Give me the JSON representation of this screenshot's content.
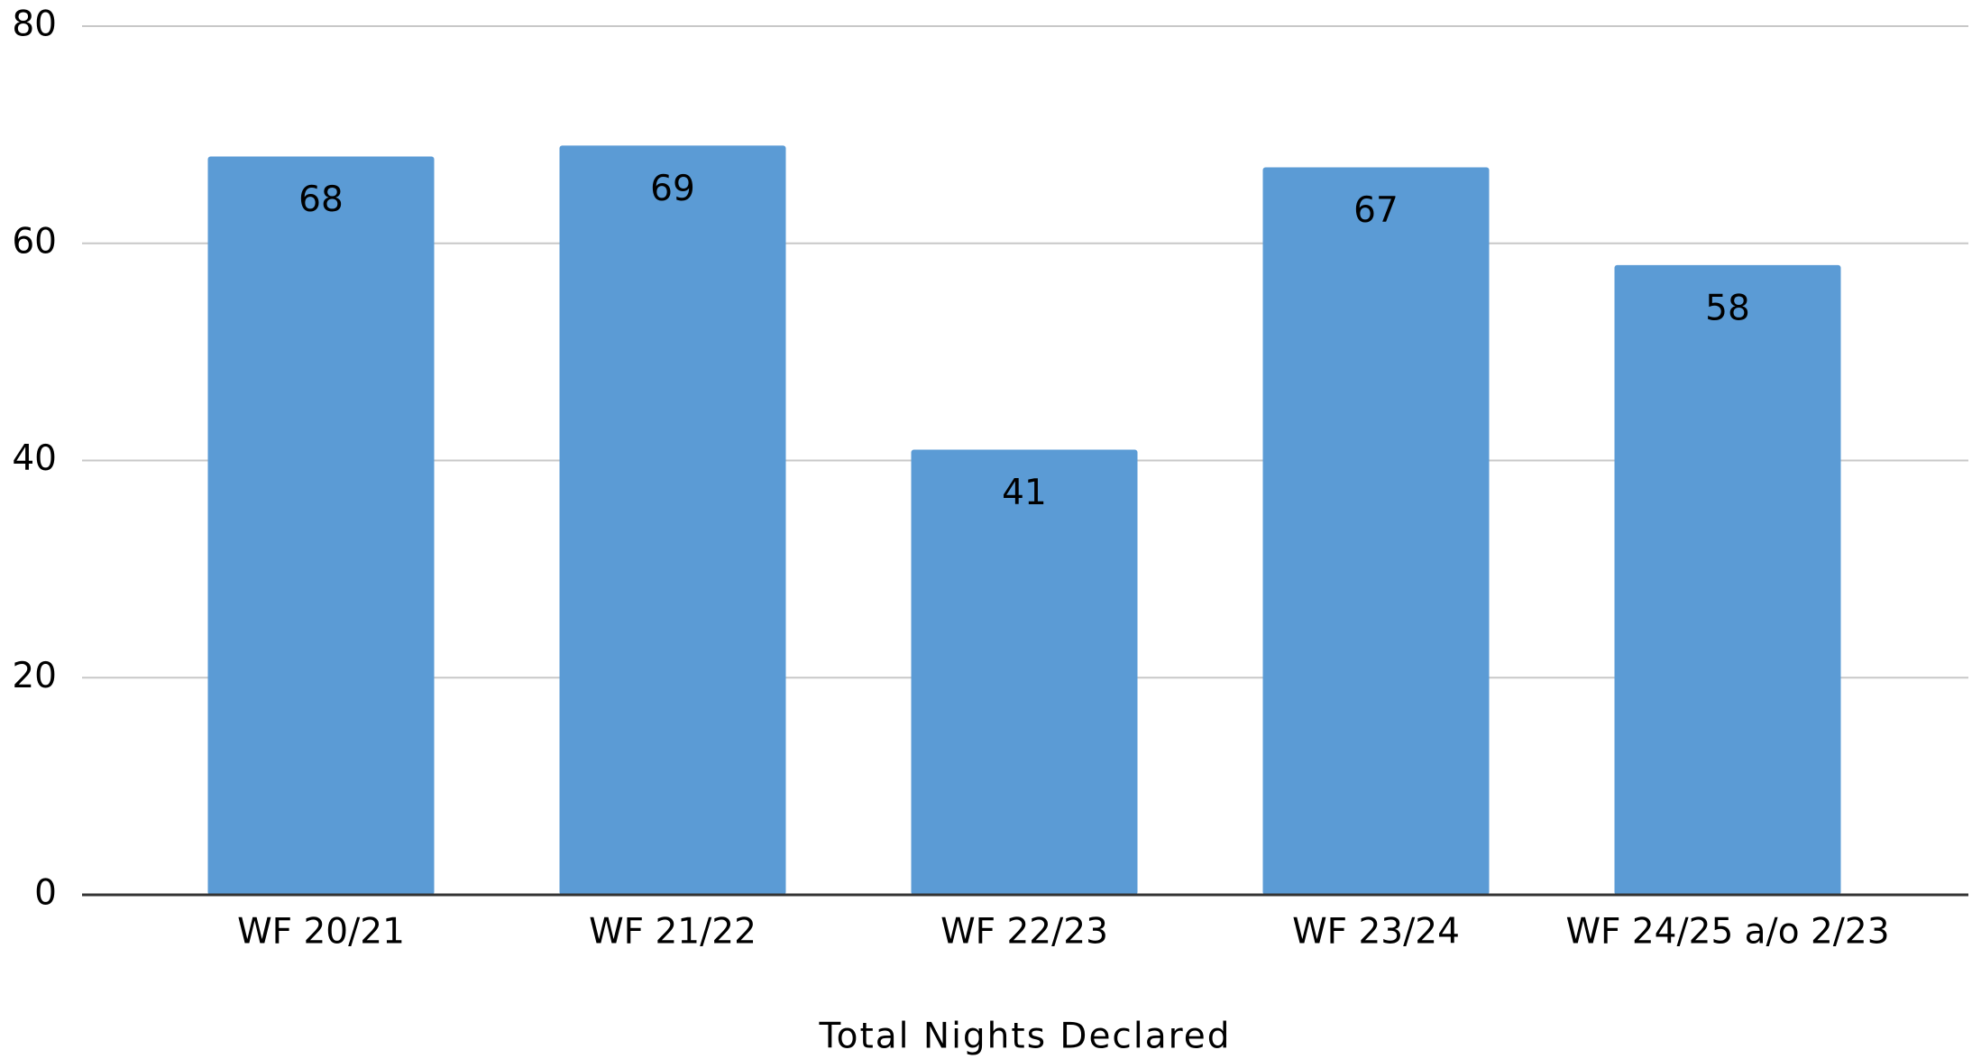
{
  "chart_data": {
    "type": "bar",
    "x_label": "Total Nights Declared",
    "categories": [
      "WF 20/21",
      "WF 21/22",
      "WF 22/23",
      "WF 23/24",
      "WF 24/25 a/o 2/23"
    ],
    "values": [
      68,
      69,
      41,
      67,
      58
    ],
    "color": "#5b9bd5",
    "ylim": [
      0,
      80
    ],
    "yticks": [
      0,
      20,
      40,
      60,
      80
    ],
    "grid": true
  }
}
